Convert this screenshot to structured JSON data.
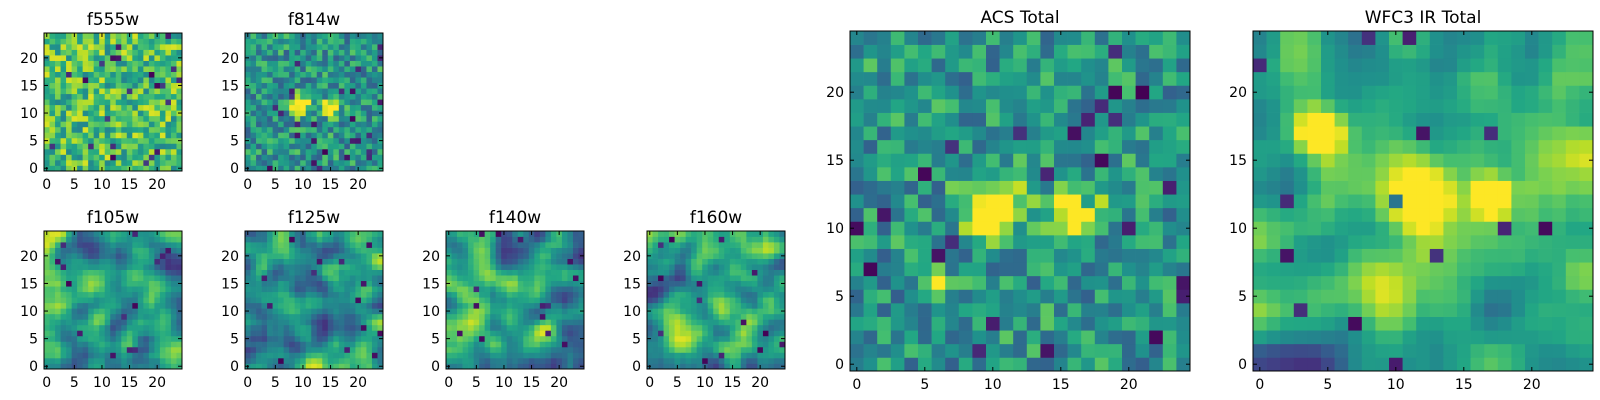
{
  "figure": {
    "description_colormap": "viridis",
    "colors": {
      "frame": "#000000",
      "background": "#ffffff"
    }
  },
  "chart_data": [
    {
      "type": "heatmap",
      "title": "f555w",
      "xticks": [
        0,
        5,
        10,
        15,
        20
      ],
      "yticks": [
        0,
        5,
        10,
        15,
        20
      ],
      "xlim": [
        -0.5,
        24.5
      ],
      "ylim": [
        -0.5,
        24.5
      ],
      "grid_size": 25,
      "seed": 11,
      "style": "noisy-high",
      "hotspots": []
    },
    {
      "type": "heatmap",
      "title": "f814w",
      "xticks": [
        0,
        5,
        10,
        15,
        20
      ],
      "yticks": [
        0,
        5,
        10,
        15,
        20
      ],
      "xlim": [
        -0.5,
        24.5
      ],
      "ylim": [
        -0.5,
        24.5
      ],
      "grid_size": 25,
      "seed": 23,
      "style": "noisy-mid",
      "hotspots": [
        [
          9.5,
          11.5,
          1.2
        ],
        [
          15,
          11,
          1.0
        ]
      ]
    },
    {
      "type": "heatmap",
      "title": "f105w",
      "xticks": [
        0,
        5,
        10,
        15,
        20
      ],
      "yticks": [
        0,
        5,
        10,
        15,
        20
      ],
      "xlim": [
        -0.5,
        24.5
      ],
      "ylim": [
        -0.5,
        24.5
      ],
      "grid_size": 25,
      "seed": 37,
      "style": "smooth",
      "hotspots": []
    },
    {
      "type": "heatmap",
      "title": "f125w",
      "xticks": [
        0,
        5,
        10,
        15,
        20
      ],
      "yticks": [
        0,
        5,
        10,
        15,
        20
      ],
      "xlim": [
        -0.5,
        24.5
      ],
      "ylim": [
        -0.5,
        24.5
      ],
      "grid_size": 25,
      "seed": 41,
      "style": "smooth",
      "hotspots": []
    },
    {
      "type": "heatmap",
      "title": "f140w",
      "xticks": [
        0,
        5,
        10,
        15,
        20
      ],
      "yticks": [
        0,
        5,
        10,
        15,
        20
      ],
      "xlim": [
        -0.5,
        24.5
      ],
      "ylim": [
        -0.5,
        24.5
      ],
      "grid_size": 25,
      "seed": 53,
      "style": "smooth",
      "hotspots": []
    },
    {
      "type": "heatmap",
      "title": "f160w",
      "xticks": [
        0,
        5,
        10,
        15,
        20
      ],
      "yticks": [
        0,
        5,
        10,
        15,
        20
      ],
      "xlim": [
        -0.5,
        24.5
      ],
      "ylim": [
        -0.5,
        24.5
      ],
      "grid_size": 25,
      "seed": 67,
      "style": "smooth",
      "hotspots": []
    },
    {
      "type": "heatmap",
      "title": "ACS Total",
      "xticks": [
        0,
        5,
        10,
        15,
        20
      ],
      "yticks": [
        0,
        5,
        10,
        15,
        20
      ],
      "xlim": [
        -0.5,
        24.5
      ],
      "ylim": [
        -0.5,
        24.5
      ],
      "grid_size": 25,
      "seed": 79,
      "style": "noisy-mid",
      "hotspots": [
        [
          10,
          11.5,
          1.4
        ],
        [
          16,
          11.5,
          1.2
        ],
        [
          6,
          6,
          0.6
        ]
      ]
    },
    {
      "type": "heatmap",
      "title": "WFC3 IR Total",
      "xticks": [
        0,
        5,
        10,
        15,
        20
      ],
      "yticks": [
        0,
        5,
        10,
        15,
        20
      ],
      "xlim": [
        -0.5,
        24.5
      ],
      "ylim": [
        -0.5,
        24.5
      ],
      "grid_size": 25,
      "seed": 97,
      "style": "smooth",
      "hotspots": [
        [
          12,
          12,
          1.6
        ],
        [
          4.5,
          17,
          1.2
        ],
        [
          17,
          12.5,
          0.9
        ]
      ]
    }
  ]
}
